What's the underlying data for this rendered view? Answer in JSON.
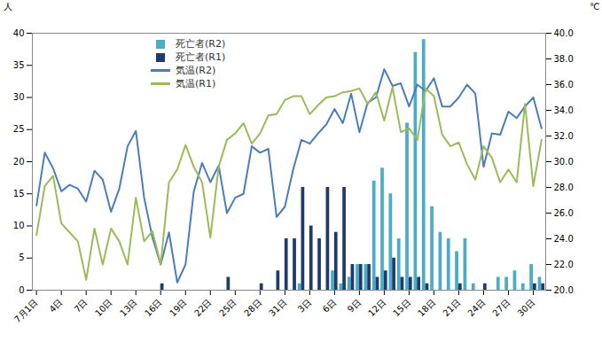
{
  "chart_data": {
    "type": "bar",
    "categories": [
      "7月1日",
      null,
      null,
      "4日",
      null,
      null,
      "7日",
      null,
      null,
      "10日",
      null,
      null,
      "13日",
      null,
      null,
      "16日",
      null,
      null,
      "19日",
      null,
      null,
      "22日",
      null,
      null,
      "25日",
      null,
      null,
      "28日",
      null,
      null,
      "31日",
      null,
      null,
      "3日",
      null,
      null,
      "6日",
      null,
      null,
      "9日",
      null,
      null,
      "12日",
      null,
      null,
      "15日",
      null,
      null,
      "18日",
      null,
      null,
      "21日",
      null,
      null,
      "24日",
      null,
      null,
      "27日",
      null,
      null,
      "30日",
      null
    ],
    "series": [
      {
        "name": "死亡者(R2)",
        "type": "bar",
        "color": "#4bacc6",
        "values": [
          0,
          0,
          0,
          0,
          0,
          0,
          0,
          0,
          0,
          0,
          0,
          0,
          0,
          0,
          0,
          0,
          0,
          0,
          0,
          0,
          0,
          0,
          0,
          0,
          0,
          0,
          0,
          0,
          0,
          0,
          0,
          0,
          1,
          0,
          0,
          0,
          3,
          1,
          2,
          4,
          4,
          17,
          19,
          15,
          8,
          26,
          37,
          39,
          13,
          9,
          8,
          6,
          8,
          1,
          0,
          0,
          2,
          2,
          3,
          1,
          4,
          2
        ]
      },
      {
        "name": "死亡者(R1)",
        "type": "bar",
        "color": "#1f3b6e",
        "values": [
          0,
          0,
          0,
          0,
          0,
          0,
          0,
          0,
          0,
          0,
          0,
          0,
          0,
          0,
          0,
          1,
          0,
          0,
          0,
          0,
          0,
          0,
          0,
          2,
          0,
          0,
          0,
          1,
          0,
          3,
          8,
          8,
          16,
          10,
          8,
          16,
          9,
          16,
          4,
          4,
          4,
          2,
          3,
          5,
          2,
          2,
          2,
          1,
          0,
          0,
          0,
          1,
          0,
          0,
          1,
          0,
          0,
          0,
          0,
          0,
          1,
          1
        ]
      },
      {
        "name": "気温(R2)",
        "type": "line",
        "axis": "y2",
        "color": "#4a7ebb",
        "values": [
          26.6,
          30.7,
          29.5,
          27.7,
          28.2,
          27.9,
          26.9,
          29.3,
          28.6,
          26.1,
          27.9,
          31.2,
          32.4,
          27.2,
          24.1,
          22.0,
          24.5,
          20.6,
          22.0,
          27.7,
          29.9,
          28.4,
          29.7,
          26.0,
          27.2,
          27.5,
          31.2,
          30.7,
          31.0,
          25.7,
          26.5,
          29.4,
          31.7,
          31.4,
          32.2,
          32.9,
          34.1,
          33.0,
          35.3,
          32.3,
          34.6,
          35.0,
          37.2,
          35.9,
          36.1,
          34.3,
          36.0,
          35.5,
          36.5,
          34.3,
          34.3,
          35.0,
          36.0,
          35.3,
          29.6,
          32.2,
          32.1,
          33.9,
          33.4,
          34.3,
          35.0,
          32.6
        ]
      },
      {
        "name": "気温(R1)",
        "type": "line",
        "axis": "y2",
        "color": "#9bbb59",
        "values": [
          24.3,
          28.1,
          28.9,
          25.2,
          24.5,
          23.8,
          20.8,
          24.8,
          22.0,
          24.8,
          23.8,
          22.0,
          27.2,
          23.8,
          24.6,
          22.0,
          28.4,
          29.4,
          31.3,
          29.6,
          28.4,
          24.1,
          29.6,
          31.7,
          32.2,
          33.0,
          31.4,
          32.2,
          33.6,
          33.7,
          34.8,
          35.1,
          35.1,
          33.7,
          34.4,
          35.0,
          35.1,
          35.4,
          35.5,
          35.7,
          34.5,
          35.4,
          33.2,
          35.8,
          32.3,
          32.6,
          31.7,
          35.7,
          35.1,
          32.1,
          31.2,
          31.5,
          29.8,
          28.6,
          31.2,
          30.3,
          28.4,
          29.4,
          28.4,
          34.5,
          28.1,
          31.7
        ]
      }
    ],
    "ylabel": "人",
    "ylim": [
      0,
      40
    ],
    "yticks": [
      0,
      5,
      10,
      15,
      20,
      25,
      30,
      35,
      40
    ],
    "y2label": "℃",
    "y2lim": [
      20,
      40
    ],
    "y2ticks": [
      {
        "value": 20,
        "label": "20.0"
      },
      {
        "value": 22,
        "label": "22.0"
      },
      {
        "value": 24,
        "label": "24.0"
      },
      {
        "value": 26,
        "label": "26.0"
      },
      {
        "value": 28,
        "label": "28.0"
      },
      {
        "value": 30,
        "label": "30.0"
      },
      {
        "value": 32,
        "label": "32.0"
      },
      {
        "value": 34,
        "label": "34.0"
      },
      {
        "value": 36,
        "label": "36.0"
      },
      {
        "value": 38,
        "label": "38.0"
      },
      {
        "value": 40,
        "label": "40.0"
      }
    ],
    "legend": "top",
    "grid": false
  }
}
